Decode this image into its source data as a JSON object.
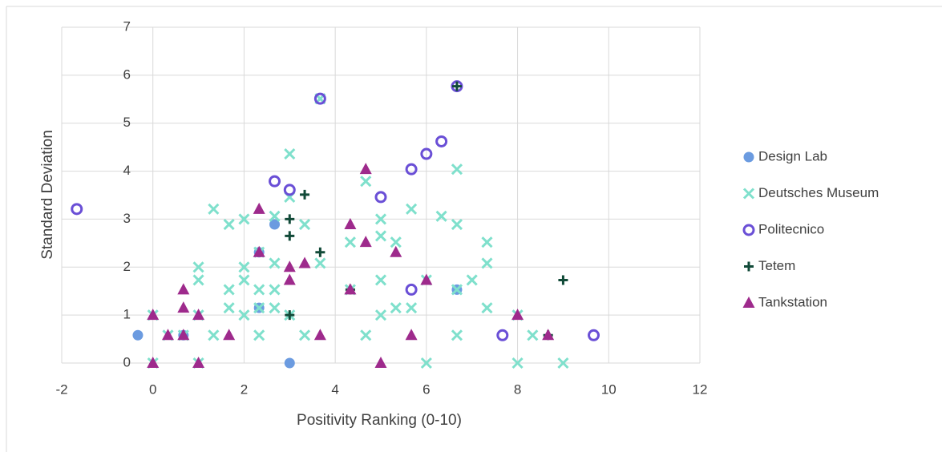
{
  "chart_data": {
    "type": "scatter",
    "xlabel": "Positivity Ranking (0-10)",
    "ylabel": "Standard Deviation",
    "xlim": [
      -2,
      12
    ],
    "xticks": [
      -2,
      0,
      2,
      4,
      6,
      8,
      10,
      12
    ],
    "ylim": [
      0,
      7
    ],
    "yticks": [
      0,
      1,
      2,
      3,
      4,
      5,
      6,
      7
    ],
    "grid": true,
    "legend": "right",
    "series": [
      {
        "name": "Design Lab",
        "color": "#6b9be0",
        "marker": "circle",
        "x": [
          -0.33,
          2.67,
          3,
          2.33,
          6.67,
          0.67,
          2.33
        ],
        "values": [
          0.58,
          2.89,
          0,
          1.15,
          1.53,
          0.58,
          2.31
        ]
      },
      {
        "name": "Deutsches Museum",
        "color": "#7fe0cc",
        "marker": "x",
        "x": [
          0,
          0,
          0.33,
          0.67,
          1,
          1,
          1,
          1,
          1.33,
          1.33,
          1.67,
          1.67,
          1.67,
          2,
          2,
          2,
          2,
          2.33,
          2.33,
          2.33,
          2.33,
          2.67,
          2.67,
          2.67,
          2.67,
          3,
          3,
          3,
          3.33,
          3.33,
          3.67,
          3.67,
          4.33,
          4.33,
          4.67,
          4.67,
          5,
          5,
          5,
          5,
          5.33,
          5.33,
          5.67,
          5.67,
          6,
          6,
          6.33,
          6.67,
          6.67,
          6.67,
          6.67,
          7,
          7.33,
          7.33,
          7.33,
          8,
          8,
          8.33,
          9
        ],
        "values": [
          0,
          1,
          0.58,
          0.58,
          0,
          1,
          1.73,
          2,
          0.58,
          3.21,
          1.15,
          1.53,
          2.89,
          1,
          1.73,
          2,
          3,
          0.58,
          1.15,
          1.53,
          2.31,
          1.15,
          1.53,
          2.08,
          3.06,
          1,
          3.46,
          4.36,
          0.58,
          2.89,
          2.08,
          5.51,
          1.53,
          2.52,
          0.58,
          3.79,
          1,
          1.73,
          2.65,
          3,
          1.15,
          2.52,
          1.15,
          3.21,
          0,
          1.73,
          3.06,
          0.58,
          1.53,
          2.89,
          4.04,
          1.73,
          1.15,
          2.08,
          2.52,
          0,
          1,
          0.58,
          0
        ]
      },
      {
        "name": "Politecnico",
        "color": "#6a4fd6",
        "marker": "ring",
        "x": [
          -1.67,
          2.67,
          3,
          3.67,
          5,
          5.67,
          6,
          6.33,
          6.67,
          5.67,
          7.67,
          9.67
        ],
        "values": [
          3.21,
          3.79,
          3.61,
          5.51,
          3.46,
          4.04,
          4.36,
          4.62,
          5.77,
          1.53,
          0.58,
          0.58
        ]
      },
      {
        "name": "Tetem",
        "color": "#114a38",
        "marker": "plus",
        "x": [
          3,
          3,
          3,
          3.33,
          3.67,
          6.67,
          8.67,
          9,
          4.33
        ],
        "values": [
          1,
          2.65,
          3,
          3.51,
          2.31,
          5.77,
          0.58,
          1.73,
          1.53
        ]
      },
      {
        "name": "Tankstation",
        "color": "#9e2a8c",
        "marker": "triangle",
        "x": [
          0,
          0,
          0.33,
          0.67,
          0.67,
          0.67,
          1,
          1,
          1.67,
          2.33,
          2.33,
          3,
          3,
          3.33,
          3.67,
          4.33,
          4.33,
          4.67,
          4.67,
          5,
          5.33,
          5.67,
          6,
          8,
          8.67
        ],
        "values": [
          1,
          0,
          0.58,
          0.58,
          1.15,
          1.53,
          1,
          0,
          0.58,
          2.31,
          3.21,
          1.73,
          2,
          2.08,
          0.58,
          1.53,
          2.89,
          2.52,
          4.04,
          0,
          2.31,
          0.58,
          1.73,
          1,
          0.58
        ]
      }
    ]
  }
}
